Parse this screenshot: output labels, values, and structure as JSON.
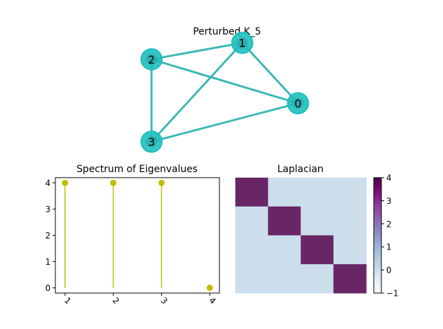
{
  "chart_data": [
    {
      "type": "network",
      "title": "Perturbed K_5",
      "nodes": [
        {
          "label": "0",
          "x": 0.95,
          "y": 0.4
        },
        {
          "label": "1",
          "x": 0.6,
          "y": 0.95
        },
        {
          "label": "2",
          "x": 0.03,
          "y": 0.8
        },
        {
          "label": "3",
          "x": 0.03,
          "y": 0.05
        }
      ],
      "edges": [
        [
          0,
          1
        ],
        [
          0,
          2
        ],
        [
          0,
          3
        ],
        [
          1,
          2
        ],
        [
          1,
          3
        ],
        [
          2,
          3
        ]
      ],
      "node_color": "#1fbfbf",
      "edge_color": "#3cb8b4"
    },
    {
      "type": "stem",
      "title": "Spectrum of Eigenvalues",
      "x": [
        1,
        2,
        3,
        4
      ],
      "values": [
        4,
        4,
        4,
        0
      ],
      "xticks": [
        "1",
        "2",
        "3",
        "4"
      ],
      "yticks": [
        0,
        1,
        2,
        3,
        4
      ],
      "xlim": [
        0.8,
        4.2
      ],
      "ylim": [
        -0.2,
        4.2
      ],
      "color": "#bfbf00"
    },
    {
      "type": "heatmap",
      "title": "Laplacian",
      "matrix": [
        [
          4,
          0,
          0,
          0
        ],
        [
          0,
          4,
          0,
          0
        ],
        [
          0,
          0,
          4,
          0
        ],
        [
          0,
          0,
          0,
          4
        ]
      ],
      "colorbar_ticks": [
        -1,
        0,
        1,
        2,
        3,
        4
      ],
      "vmin": -1,
      "vmax": 4,
      "cmap": "BuPu"
    }
  ]
}
